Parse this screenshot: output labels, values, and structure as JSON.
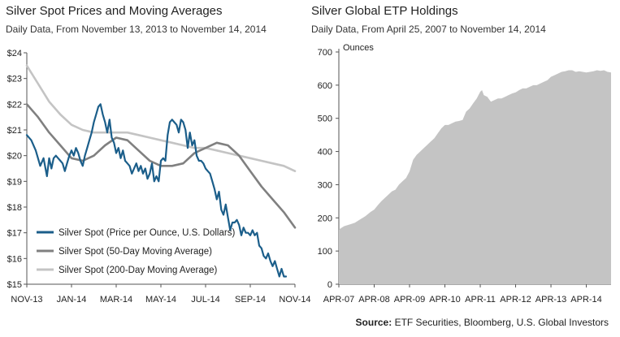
{
  "chart_data": [
    {
      "type": "line",
      "title": "Silver Spot Prices and Moving Averages",
      "subtitle": "Daily Data, From November 13, 2013 to November 14, 2014",
      "xlabel": "",
      "ylabel": "",
      "x_ticks": [
        "NOV-13",
        "JAN-14",
        "MAR-14",
        "MAY-14",
        "JUL-14",
        "SEP-14",
        "NOV-14"
      ],
      "y_ticks": [
        "$15",
        "$16",
        "$17",
        "$18",
        "$19",
        "$20",
        "$21",
        "$22",
        "$23",
        "$24"
      ],
      "xlim": [
        0,
        12
      ],
      "ylim": [
        15,
        24
      ],
      "grid": false,
      "legend_position": "bottom-left",
      "series": [
        {
          "name": "Silver Spot (Price per Ounce, U.S. Dollars)",
          "color": "#1b5e8a",
          "x": [
            0,
            0.2,
            0.4,
            0.6,
            0.75,
            0.9,
            1.0,
            1.1,
            1.2,
            1.3,
            1.4,
            1.5,
            1.6,
            1.7,
            1.8,
            1.9,
            2.0,
            2.1,
            2.2,
            2.3,
            2.4,
            2.5,
            2.6,
            2.7,
            2.8,
            2.9,
            3.0,
            3.1,
            3.2,
            3.3,
            3.4,
            3.5,
            3.6,
            3.7,
            3.8,
            3.9,
            4.0,
            4.1,
            4.2,
            4.3,
            4.4,
            4.5,
            4.6,
            4.7,
            4.8,
            4.9,
            5.0,
            5.1,
            5.2,
            5.3,
            5.4,
            5.5,
            5.6,
            5.7,
            5.8,
            5.9,
            6.0,
            6.1,
            6.2,
            6.3,
            6.4,
            6.5,
            6.6,
            6.7,
            6.8,
            6.9,
            7.0,
            7.1,
            7.2,
            7.3,
            7.4,
            7.5,
            7.6,
            7.7,
            7.8,
            7.9,
            8.0,
            8.1,
            8.2,
            8.3,
            8.4,
            8.5,
            8.6,
            8.7,
            8.8,
            8.9,
            9.0,
            9.1,
            9.2,
            9.3,
            9.4,
            9.5,
            9.6,
            9.7,
            9.8,
            9.9,
            10.0,
            10.1,
            10.2,
            10.3,
            10.4,
            10.5,
            10.6,
            10.7,
            10.8,
            10.9,
            11.0,
            11.1,
            11.2,
            11.3,
            11.4,
            11.5,
            11.6
          ],
          "values": [
            20.8,
            20.6,
            20.2,
            19.6,
            19.9,
            19.2,
            19.9,
            19.5,
            19.9,
            20.0,
            19.9,
            19.8,
            19.7,
            19.4,
            19.7,
            20.0,
            20.2,
            20.0,
            20.3,
            20.1,
            19.8,
            19.6,
            20.0,
            20.3,
            20.6,
            20.9,
            21.3,
            21.6,
            21.9,
            22.0,
            21.6,
            21.3,
            20.9,
            21.4,
            20.7,
            20.5,
            20.1,
            20.3,
            19.9,
            20.2,
            19.8,
            19.7,
            19.6,
            19.3,
            19.5,
            19.7,
            19.4,
            19.6,
            19.3,
            19.5,
            19.1,
            19.3,
            19.7,
            19.0,
            19.2,
            19.0,
            19.8,
            19.9,
            19.8,
            20.8,
            21.3,
            21.4,
            21.3,
            21.2,
            20.9,
            21.4,
            21.3,
            21.0,
            20.3,
            20.9,
            20.4,
            20.6,
            20.0,
            19.8,
            19.8,
            19.7,
            19.5,
            19.4,
            19.3,
            19.0,
            18.7,
            18.3,
            18.6,
            17.9,
            17.7,
            18.1,
            17.6,
            17.1,
            17.4,
            17.4,
            17.5,
            17.3,
            16.9,
            17.2,
            17.0,
            17.0,
            16.9,
            17.1,
            16.9,
            17.0,
            16.5,
            16.4,
            16.1,
            16.0,
            16.2,
            15.9,
            15.7,
            15.9,
            15.6,
            15.3,
            15.6,
            15.3,
            15.3
          ]
        },
        {
          "name": "Silver Spot (50-Day Moving Average)",
          "color": "#808080",
          "x": [
            0,
            0.5,
            1.0,
            1.5,
            2.0,
            2.5,
            3.0,
            3.5,
            4.0,
            4.5,
            5.0,
            5.5,
            6.0,
            6.5,
            7.0,
            7.5,
            8.0,
            8.5,
            9.0,
            9.5,
            10.0,
            10.5,
            11.0,
            11.5,
            12.0
          ],
          "values": [
            22.0,
            21.5,
            20.9,
            20.4,
            19.9,
            19.8,
            20.0,
            20.4,
            20.7,
            20.6,
            20.2,
            19.8,
            19.6,
            19.6,
            19.7,
            20.1,
            20.3,
            20.5,
            20.4,
            20.0,
            19.4,
            18.8,
            18.3,
            17.8,
            17.2
          ]
        },
        {
          "name": "Silver Spot (200-Day Moving Average)",
          "color": "#c4c4c4",
          "x": [
            0,
            0.5,
            1.0,
            1.5,
            2.0,
            2.5,
            3.0,
            3.5,
            4.0,
            4.5,
            5.0,
            5.5,
            6.0,
            6.5,
            7.0,
            7.5,
            8.0,
            8.5,
            9.0,
            9.5,
            10.0,
            10.5,
            11.0,
            11.5,
            12.0
          ],
          "values": [
            23.5,
            22.8,
            22.1,
            21.6,
            21.2,
            21.0,
            20.9,
            20.9,
            20.9,
            20.9,
            20.8,
            20.7,
            20.6,
            20.5,
            20.4,
            20.3,
            20.3,
            20.2,
            20.1,
            20.0,
            19.9,
            19.8,
            19.7,
            19.6,
            19.4
          ]
        }
      ]
    },
    {
      "type": "area",
      "title": "Silver Global ETP Holdings",
      "subtitle": "Daily Data, From April 25, 2007 to November 14, 2014",
      "unit_label": "Ounces",
      "xlabel": "",
      "ylabel": "Ounces",
      "x_ticks": [
        "APR-07",
        "APR-08",
        "APR-09",
        "APR-10",
        "APR-11",
        "APR-12",
        "APR-13",
        "APR-14"
      ],
      "y_ticks": [
        "0",
        "100",
        "200",
        "300",
        "400",
        "500",
        "600",
        "700"
      ],
      "xlim": [
        0,
        7.7
      ],
      "ylim": [
        0,
        700
      ],
      "grid": false,
      "series": [
        {
          "name": "",
          "color": "#c4c4c4",
          "x": [
            0,
            0.15,
            0.3,
            0.45,
            0.6,
            0.75,
            0.9,
            1.0,
            1.1,
            1.2,
            1.3,
            1.4,
            1.5,
            1.6,
            1.7,
            1.8,
            1.9,
            2.0,
            2.1,
            2.2,
            2.3,
            2.4,
            2.5,
            2.6,
            2.7,
            2.8,
            2.9,
            3.0,
            3.1,
            3.2,
            3.3,
            3.4,
            3.5,
            3.6,
            3.7,
            3.8,
            3.9,
            4.0,
            4.05,
            4.1,
            4.2,
            4.3,
            4.4,
            4.5,
            4.6,
            4.7,
            4.8,
            4.9,
            5.0,
            5.1,
            5.2,
            5.3,
            5.4,
            5.5,
            5.6,
            5.7,
            5.8,
            5.9,
            6.0,
            6.1,
            6.2,
            6.3,
            6.4,
            6.5,
            6.6,
            6.7,
            6.8,
            6.9,
            7.0,
            7.1,
            7.2,
            7.3,
            7.4,
            7.5,
            7.6,
            7.7
          ],
          "values": [
            165,
            175,
            180,
            185,
            195,
            205,
            218,
            225,
            238,
            250,
            260,
            270,
            280,
            285,
            300,
            310,
            320,
            340,
            375,
            390,
            400,
            410,
            420,
            430,
            440,
            455,
            470,
            480,
            480,
            485,
            490,
            492,
            495,
            520,
            530,
            545,
            560,
            580,
            585,
            570,
            565,
            550,
            555,
            560,
            560,
            565,
            570,
            575,
            578,
            585,
            590,
            590,
            595,
            600,
            600,
            605,
            610,
            615,
            625,
            630,
            635,
            640,
            642,
            645,
            645,
            640,
            642,
            640,
            638,
            640,
            642,
            645,
            643,
            645,
            640,
            638
          ]
        }
      ]
    }
  ],
  "source": {
    "label": "Source:",
    "text": "ETF Securities, Bloomberg, U.S. Global Investors"
  }
}
